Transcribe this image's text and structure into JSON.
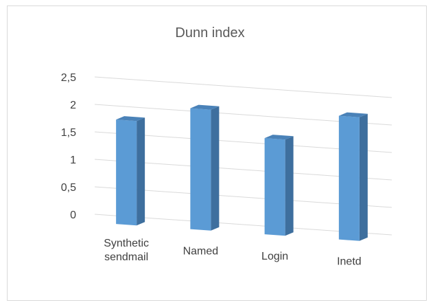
{
  "chart_data": {
    "type": "bar",
    "title": "Dunn index",
    "categories": [
      [
        "Synthetic",
        "sendmail"
      ],
      [
        "Named"
      ],
      [
        "Login"
      ],
      [
        "Inetd"
      ]
    ],
    "series": [
      {
        "values": [
          1.9,
          2.2,
          1.75,
          2.25
        ]
      }
    ],
    "yticks": [
      "0",
      "0,5",
      "1",
      "1,5",
      "2",
      "2,5"
    ],
    "ylim": [
      0,
      2.5
    ],
    "grid": true,
    "legend": "none",
    "style": "3d-column",
    "colors": {
      "front": "#5b9bd5",
      "side": "#3e6f9e",
      "top": "#4a82b8",
      "grid": "#d9d9d9"
    }
  }
}
